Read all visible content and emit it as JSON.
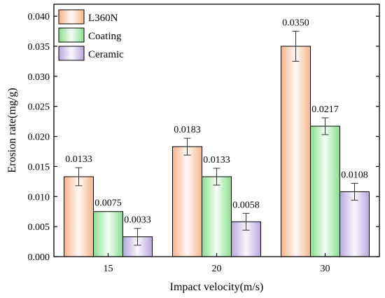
{
  "chart_data": {
    "type": "bar",
    "xlabel": "Impact velocity(m/s)",
    "ylabel": "Erosion rate(mg/g)",
    "categories": [
      "15",
      "20",
      "30"
    ],
    "ylim": [
      0,
      0.042
    ],
    "yticks": [
      "0.000",
      "0.005",
      "0.010",
      "0.015",
      "0.020",
      "0.025",
      "0.030",
      "0.035",
      "0.040"
    ],
    "legend_position": "top-left",
    "series": [
      {
        "name": "L360N",
        "color": "#f7b58a",
        "values": [
          0.0133,
          0.0183,
          0.035
        ],
        "errors": [
          0.0015,
          0.0014,
          0.0025
        ],
        "labels": [
          "0.0133",
          "0.0183",
          "0.0350"
        ]
      },
      {
        "name": "Coating",
        "color": "#86df8c",
        "values": [
          0.0075,
          0.0133,
          0.0217
        ],
        "errors": [
          0.0,
          0.0014,
          0.0014
        ],
        "labels": [
          "0.0075",
          "0.0133",
          "0.0217"
        ]
      },
      {
        "name": "Ceramic",
        "color": "#b9a6dd",
        "values": [
          0.0033,
          0.0058,
          0.0108
        ],
        "errors": [
          0.0014,
          0.0014,
          0.0014
        ],
        "labels": [
          "0.0033",
          "0.0058",
          "0.0108"
        ]
      }
    ]
  }
}
